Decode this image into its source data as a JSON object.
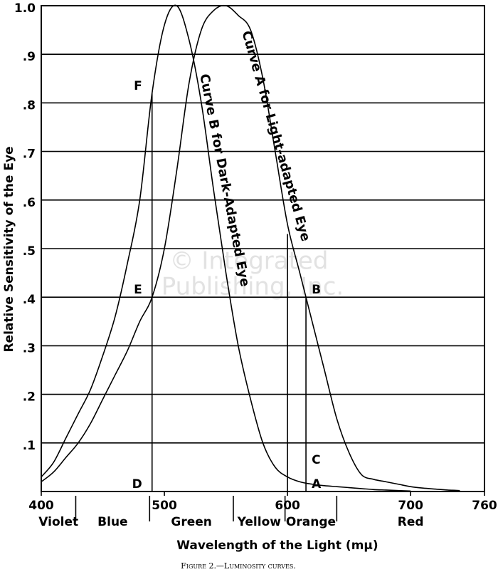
{
  "chart_data": {
    "type": "line",
    "caption": "Figure 2.—Luminosity curves.",
    "x_label": "Wavelength of the Light (mμ)",
    "y_label": "Relative Sensitivity of the Eye",
    "watermark": [
      "© Integrated",
      "Publishing, Inc."
    ],
    "x": [
      400,
      410,
      420,
      430,
      440,
      450,
      460,
      470,
      480,
      490,
      500,
      510,
      520,
      530,
      540,
      550,
      560,
      570,
      580,
      590,
      600,
      610,
      620,
      630,
      640,
      650,
      660,
      670,
      680,
      690,
      700,
      710,
      720,
      730,
      740,
      750
    ],
    "series": [
      {
        "name": "Curve A for Light-adapted Eye",
        "color": "#000000",
        "values": [
          0.02,
          0.04,
          0.07,
          0.1,
          0.14,
          0.19,
          0.24,
          0.29,
          0.35,
          0.4,
          0.5,
          0.66,
          0.84,
          0.95,
          0.99,
          1.0,
          0.98,
          0.95,
          0.85,
          0.7,
          0.55,
          0.45,
          0.35,
          0.25,
          0.15,
          0.08,
          0.035,
          0.025,
          0.02,
          0.015,
          0.01,
          0.007,
          0.005,
          0.003,
          0.002,
          null
        ]
      },
      {
        "name": "Curve B for Dark-Adapted Eye",
        "color": "#000000",
        "values": [
          0.03,
          0.06,
          0.11,
          0.16,
          0.21,
          0.28,
          0.36,
          0.47,
          0.6,
          0.82,
          0.96,
          1.0,
          0.93,
          0.8,
          0.62,
          0.45,
          0.3,
          0.19,
          0.1,
          0.05,
          0.03,
          0.02,
          0.015,
          0.012,
          0.01,
          0.008,
          0.006,
          0.004,
          0.003,
          0.002,
          0.001,
          null,
          null,
          null,
          null,
          null
        ]
      }
    ],
    "xlim": [
      400,
      760
    ],
    "ylim": [
      0,
      1.0
    ],
    "xticks": [
      400,
      500,
      600,
      700,
      760
    ],
    "yticks": [
      {
        "value": 0.1,
        "label": ".1"
      },
      {
        "value": 0.2,
        "label": ".2"
      },
      {
        "value": 0.3,
        "label": ".3"
      },
      {
        "value": 0.4,
        "label": ".4"
      },
      {
        "value": 0.5,
        "label": ".5"
      },
      {
        "value": 0.6,
        "label": ".6"
      },
      {
        "value": 0.7,
        "label": ".7"
      },
      {
        "value": 0.8,
        "label": ".8"
      },
      {
        "value": 0.9,
        "label": ".9"
      },
      {
        "value": 1.0,
        "label": "1.0"
      }
    ],
    "grid": true,
    "bands": [
      {
        "label": "Violet",
        "from": 400,
        "to": 428
      },
      {
        "label": "Blue",
        "from": 428,
        "to": 488
      },
      {
        "label": "Green",
        "from": 488,
        "to": 556
      },
      {
        "label": "Yellow",
        "from": 556,
        "to": 598
      },
      {
        "label": "Orange",
        "from": 598,
        "to": 640
      },
      {
        "label": "Red",
        "from": 640,
        "to": 760
      }
    ],
    "guides": [
      {
        "x": 490,
        "y": 0.82
      },
      {
        "x": 600,
        "y": 0.53
      },
      {
        "x": 615,
        "y": 0.4
      }
    ],
    "points": [
      {
        "label": "F",
        "x": 490,
        "y": 0.82
      },
      {
        "label": "E",
        "x": 490,
        "y": 0.4
      },
      {
        "label": "D",
        "x": 490,
        "y": 0
      },
      {
        "label": "B",
        "x": 615,
        "y": 0.4
      },
      {
        "label": "C",
        "x": 615,
        "y": 0.05
      },
      {
        "label": "A",
        "x": 615,
        "y": 0
      }
    ]
  }
}
